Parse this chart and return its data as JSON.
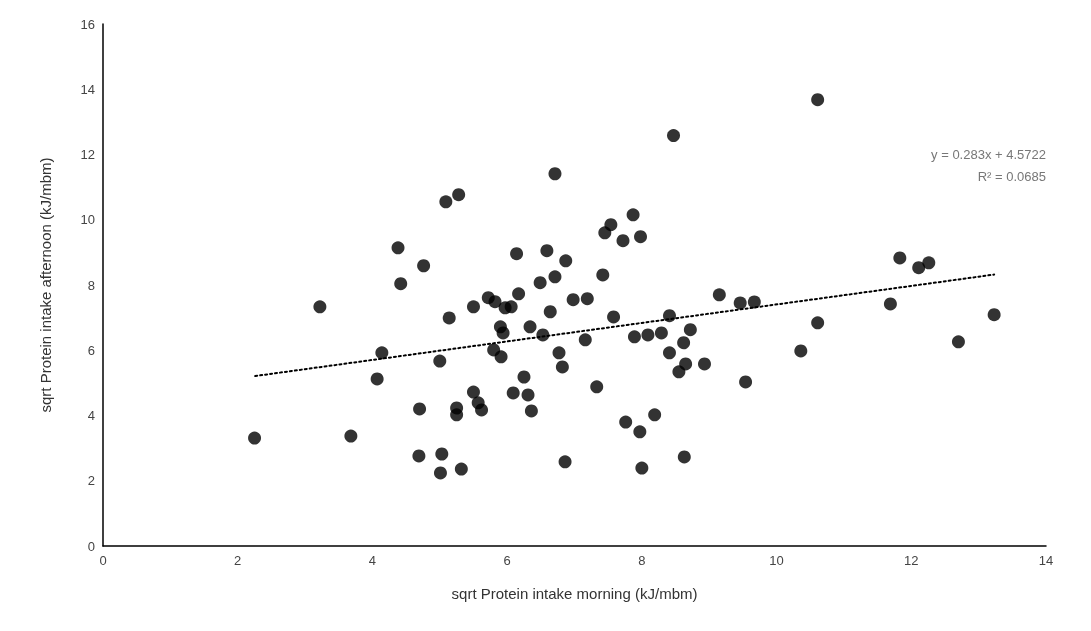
{
  "chart_data": {
    "type": "scatter",
    "xlabel": "sqrt Protein intake morning (kJ/mbm)",
    "ylabel": "sqrt Protein intake afternoon (kJ/mbm)",
    "xlim": [
      0,
      14
    ],
    "xticks": [
      0,
      2,
      4,
      6,
      8,
      10,
      12,
      14
    ],
    "ylim": [
      0,
      16
    ],
    "yticks": [
      0,
      2,
      4,
      6,
      8,
      10,
      12,
      14,
      16
    ],
    "grid": false,
    "marker": "circle",
    "annotations": [
      "y = 0.283x + 4.5722",
      "R² = 0.0685"
    ],
    "series": [
      {
        "color": "#000000",
        "x": [
          2.25,
          3.22,
          3.68,
          4.07,
          4.14,
          4.38,
          4.42,
          4.7,
          4.69,
          4.76,
          5.0,
          5.01,
          5.03,
          5.09,
          5.14,
          5.25,
          5.25,
          5.28,
          5.32,
          5.5,
          5.5,
          5.57,
          5.62,
          5.72,
          5.8,
          5.82,
          5.9,
          5.91,
          5.94,
          5.97,
          6.06,
          6.09,
          6.14,
          6.17,
          6.25,
          6.31,
          6.34,
          6.36,
          6.49,
          6.53,
          6.59,
          6.64,
          6.71,
          6.71,
          6.77,
          6.82,
          6.86,
          6.87,
          6.98,
          7.16,
          7.19,
          7.33,
          7.42,
          7.45,
          7.54,
          7.58,
          7.72,
          7.76,
          7.87,
          7.89,
          7.97,
          7.98,
          8.0,
          8.09,
          8.19,
          8.29,
          8.41,
          8.41,
          8.47,
          8.55,
          8.62,
          8.63,
          8.65,
          8.72,
          8.93,
          9.15,
          9.46,
          9.54,
          9.67,
          10.36,
          10.61,
          10.61,
          11.69,
          11.83,
          12.11,
          12.26,
          12.7,
          13.23
        ],
        "values": [
          3.31,
          7.33,
          3.37,
          5.12,
          5.92,
          9.14,
          8.04,
          4.2,
          2.76,
          8.59,
          5.67,
          2.24,
          2.82,
          10.55,
          6.99,
          4.23,
          4.02,
          10.77,
          2.36,
          7.33,
          4.72,
          4.39,
          4.17,
          7.61,
          6.01,
          7.49,
          6.72,
          5.8,
          6.53,
          7.3,
          7.33,
          4.69,
          8.96,
          7.73,
          5.18,
          4.63,
          6.72,
          4.14,
          8.07,
          6.47,
          9.05,
          7.18,
          11.41,
          8.25,
          5.92,
          5.49,
          2.58,
          8.74,
          7.55,
          6.32,
          7.58,
          4.88,
          8.31,
          9.6,
          9.85,
          7.02,
          9.36,
          3.8,
          10.15,
          6.41,
          3.5,
          9.48,
          2.39,
          6.47,
          4.02,
          6.53,
          7.06,
          5.92,
          12.58,
          5.34,
          6.23,
          2.73,
          5.58,
          6.63,
          5.58,
          7.7,
          7.45,
          5.03,
          7.48,
          5.98,
          6.84,
          13.68,
          7.42,
          8.83,
          8.53,
          8.68,
          6.26,
          7.09
        ]
      },
      {
        "type": "line",
        "color": "#000000",
        "marker": "none",
        "line_style": "dotted",
        "x": [
          2.26,
          13.23
        ],
        "values": [
          5.21,
          8.32
        ]
      }
    ]
  }
}
